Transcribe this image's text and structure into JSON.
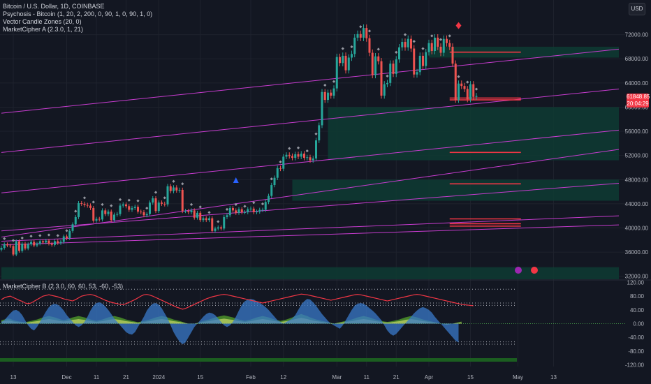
{
  "legend": {
    "main": "Bitcoin / U.S. Dollar, 1D, COINBASE",
    "ind1": "Psychosis - Bitcoin (1, 20, 2, 200, 0, 90, 1, 0, 90, 1, 0)",
    "ind2": "Vector Candle Zones (20, 0)",
    "ind3": "MarketCipher A (2.3.0, 1, 21)",
    "ind4": "MarketCipher B (2.3.0, 60, 60, 53, -60, -53)"
  },
  "currency_button": "USD",
  "price_tag": {
    "price": "61848.85",
    "countdown": "20:04:29"
  },
  "colors": {
    "bg": "#131722",
    "grid": "#1e222d",
    "up": "#26a69a",
    "down": "#ef5350",
    "trend": "#c73ccf",
    "zone": "#0e3b33",
    "level": "#f23645",
    "wave_blue": "#3a79c9",
    "wave_green": "#4f9a2b",
    "wave_yellow": "#c9d86a"
  },
  "chart_data": [
    {
      "type": "candlestick",
      "y_ticks": [
        "72000.00",
        "68000.00",
        "64000.00",
        "60000.00",
        "56000.00",
        "52000.00",
        "48000.00",
        "44000.00",
        "40000.00",
        "36000.00",
        "32000.00"
      ],
      "ylim": [
        31500,
        74500
      ],
      "x_ticks": [
        "13",
        "Dec",
        "11",
        "21",
        "2024",
        "15",
        "Feb",
        "12",
        "Mar",
        "11",
        "21",
        "Apr",
        "15",
        "May",
        "13"
      ],
      "x_tick_dates": [
        "2023-11-13",
        "2023-12-01",
        "2023-12-11",
        "2023-12-21",
        "2024-01-01",
        "2024-01-15",
        "2024-02-01",
        "2024-02-12",
        "2024-03-01",
        "2024-03-11",
        "2024-03-21",
        "2024-04-01",
        "2024-04-15",
        "2024-05-01",
        "2024-05-13"
      ],
      "series": [
        {
          "role": "price",
          "start_date": "2023-11-09",
          "close": [
            36700,
            37300,
            37100,
            37000,
            35600,
            37800,
            36200,
            37400,
            36600,
            37300,
            37700,
            37100,
            37400,
            37800,
            37600,
            37900,
            37400,
            37200,
            37800,
            37500,
            37700,
            38600,
            38300,
            39500,
            40600,
            41800,
            44100,
            44000,
            43800,
            43700,
            43300,
            41200,
            41500,
            41400,
            42900,
            42300,
            42700,
            41300,
            42200,
            42300,
            43700,
            43900,
            43600,
            43000,
            43300,
            43500,
            42700,
            42600,
            42100,
            42300,
            44200,
            44900,
            42800,
            44200,
            44000,
            43900,
            46900,
            46100,
            46700,
            46200,
            46300,
            42800,
            42800,
            42600,
            42900,
            41700,
            42500,
            41300,
            41600,
            41300,
            41600,
            39500,
            39900,
            40100,
            39900,
            41800,
            42100,
            43300,
            42900,
            42500,
            43100,
            42600,
            42600,
            43100,
            43200,
            42600,
            42700,
            43000,
            43000,
            44300,
            45300,
            47100,
            48300,
            49900,
            49800,
            51800,
            52100,
            51900,
            51600,
            52200,
            51800,
            52300,
            51600,
            51700,
            51200,
            51500,
            54500,
            57000,
            62500,
            61200,
            62400,
            61900,
            63100,
            68300,
            67300,
            68500,
            66100,
            68200,
            68800,
            71500,
            72100,
            71500,
            73100,
            71400,
            69000,
            65300,
            68400,
            67600,
            61900,
            63800,
            64000,
            67200,
            65500,
            67900,
            69900,
            70800,
            69900,
            71300,
            69700,
            65400,
            65800,
            68500,
            66800,
            69100,
            70600,
            69300,
            71500,
            70000,
            69000,
            71300,
            70600,
            70000,
            67200,
            61200,
            63900,
            63500,
            63000,
            61300,
            63800,
            61700,
            61848
          ]
        }
      ],
      "trendlines": [
        {
          "start_date": "2023-11-09",
          "start_value": 59000,
          "end_date": "2024-06-04",
          "end_value": 69600
        },
        {
          "start_date": "2023-11-09",
          "start_value": 52500,
          "end_date": "2024-06-04",
          "end_value": 63000
        },
        {
          "start_date": "2023-11-09",
          "start_value": 45800,
          "end_date": "2024-06-04",
          "end_value": 56200
        },
        {
          "start_date": "2023-11-09",
          "start_value": 38500,
          "end_date": "2024-06-04",
          "end_value": 53000
        },
        {
          "start_date": "2023-11-09",
          "start_value": 39500,
          "end_date": "2024-06-04",
          "end_value": 47400
        },
        {
          "start_date": "2023-11-09",
          "start_value": 37800,
          "end_date": "2024-06-04",
          "end_value": 42000
        },
        {
          "start_date": "2023-11-09",
          "start_value": 37200,
          "end_date": "2024-06-04",
          "end_value": 40500
        }
      ],
      "zones": [
        {
          "start_date": "2024-02-27",
          "end_date": "2024-06-04",
          "low": 51200,
          "high": 60000
        },
        {
          "start_date": "2024-02-15",
          "end_date": "2024-06-04",
          "low": 44500,
          "high": 48000
        },
        {
          "start_date": "2023-11-09",
          "end_date": "2024-06-04",
          "low": 31500,
          "high": 33500
        },
        {
          "start_date": "2024-04-01",
          "end_date": "2024-06-04",
          "low": 68200,
          "high": 70000
        }
      ],
      "levels": [
        {
          "start_date": "2024-04-08",
          "end_date": "2024-05-02",
          "value": 69100
        },
        {
          "start_date": "2024-04-08",
          "end_date": "2024-05-02",
          "value": 61500
        },
        {
          "start_date": "2024-04-08",
          "end_date": "2024-05-02",
          "value": 61200
        },
        {
          "start_date": "2024-04-08",
          "end_date": "2024-05-02",
          "value": 52500
        },
        {
          "start_date": "2024-04-08",
          "end_date": "2024-05-02",
          "value": 47300
        },
        {
          "start_date": "2024-04-08",
          "end_date": "2024-05-02",
          "value": 41500
        },
        {
          "start_date": "2024-04-08",
          "end_date": "2024-05-02",
          "value": 40700
        },
        {
          "start_date": "2024-04-08",
          "end_date": "2024-05-02",
          "value": 40300
        }
      ],
      "markers": [
        {
          "date": "2024-01-27",
          "value": 47800,
          "shape": "triangle"
        },
        {
          "date": "2024-04-11",
          "value": 73500,
          "shape": "diamond"
        }
      ]
    },
    {
      "type": "area",
      "y_ticks": [
        "120.00",
        "80.00",
        "40.00",
        "0.00",
        "-40.00",
        "-80.00",
        "-120.00"
      ],
      "ylim": [
        -125,
        125
      ],
      "threshold_lines": [
        100,
        60,
        53,
        -53,
        -60
      ],
      "x_start_date": "2023-11-09",
      "x_step_days": 1,
      "wave": [
        5,
        10,
        20,
        30,
        38,
        40,
        35,
        25,
        10,
        -5,
        -15,
        -20,
        -10,
        5,
        20,
        35,
        48,
        55,
        58,
        55,
        48,
        38,
        25,
        15,
        5,
        -5,
        -10,
        -5,
        5,
        20,
        38,
        52,
        60,
        62,
        58,
        50,
        40,
        28,
        15,
        5,
        -5,
        -15,
        -25,
        -30,
        -32,
        -25,
        -10,
        5,
        20,
        38,
        50,
        58,
        60,
        55,
        45,
        30,
        15,
        -5,
        -25,
        -40,
        -52,
        -60,
        -55,
        -40,
        -25,
        -10,
        0,
        10,
        20,
        28,
        32,
        30,
        25,
        15,
        5,
        -5,
        -10,
        -5,
        5,
        20,
        38,
        55,
        65,
        70,
        72,
        70,
        65,
        60,
        55,
        48,
        40,
        30,
        20,
        10,
        5,
        0,
        5,
        10,
        15,
        25,
        40,
        55,
        65,
        72,
        70,
        62,
        52,
        40,
        28,
        18,
        8,
        0,
        -5,
        -10,
        -15,
        -5,
        10,
        25,
        40,
        52,
        58,
        60,
        58,
        52,
        45,
        38,
        30,
        20,
        10,
        -5,
        -20,
        -30,
        -35,
        -30,
        -20,
        -10,
        0,
        10,
        20,
        30,
        38,
        45,
        48,
        45,
        40,
        32,
        20,
        10,
        0,
        -10,
        -20,
        -30,
        -40,
        -50,
        -55
      ],
      "money_flow": [
        10,
        12,
        15,
        14,
        10,
        8,
        6,
        5,
        4,
        6,
        8,
        10,
        12,
        15,
        18,
        20,
        22,
        20,
        18,
        15,
        12,
        10,
        12,
        15,
        18,
        20,
        22,
        20,
        18,
        15,
        12,
        10,
        8,
        10,
        12,
        15,
        18,
        20,
        22,
        20,
        18,
        15,
        12,
        10,
        8,
        6,
        4,
        6,
        8,
        10,
        12,
        15,
        18,
        20,
        22,
        20,
        18,
        15,
        12,
        10,
        8,
        5,
        2,
        0,
        -2,
        0,
        2,
        5,
        8,
        10,
        12,
        15,
        18,
        20,
        22,
        24,
        22,
        20,
        18,
        15,
        12,
        10,
        8,
        10,
        12,
        15,
        18,
        20,
        22,
        20,
        18,
        15,
        12,
        10,
        8,
        10,
        12,
        15,
        18,
        22,
        25,
        28,
        25,
        22,
        18,
        15,
        12,
        10,
        8,
        6,
        4,
        2,
        0,
        2,
        4,
        6,
        8,
        10,
        12,
        15,
        18,
        20,
        22,
        20,
        18,
        15,
        12,
        10,
        8,
        6,
        5,
        6,
        8,
        10,
        12,
        15,
        18,
        20,
        22,
        20,
        18,
        15,
        12,
        10,
        8,
        6,
        4,
        2,
        0,
        -2,
        -4,
        -2,
        0,
        2,
        4,
        6
      ],
      "rsi_line": [
        70,
        75,
        78,
        80,
        76,
        72,
        68,
        65,
        60,
        58,
        60,
        65,
        70,
        75,
        80,
        82,
        84,
        82,
        80,
        78,
        75,
        72,
        70,
        68,
        66,
        70,
        75,
        80,
        82,
        84,
        85,
        83,
        80,
        76,
        72,
        68,
        65,
        62,
        60,
        58,
        56,
        55,
        58,
        62,
        66,
        70,
        75,
        80,
        84,
        85,
        83,
        80,
        76,
        72,
        68,
        64,
        60,
        56,
        52,
        48,
        45,
        42,
        44,
        48,
        52,
        56,
        60,
        64,
        68,
        72,
        75,
        78,
        80,
        82,
        84,
        85,
        84,
        82,
        80,
        78,
        76,
        74,
        72,
        70,
        68,
        66,
        64,
        62,
        60,
        62,
        64,
        66,
        68,
        70,
        72,
        74,
        76,
        78,
        80,
        82,
        84,
        86,
        85,
        84,
        82,
        80,
        78,
        76,
        74,
        72,
        70,
        68,
        70,
        72,
        74,
        76,
        78,
        80,
        82,
        84,
        85,
        84,
        82,
        80,
        78,
        76,
        74,
        72,
        70,
        68,
        66,
        68,
        70,
        72,
        74,
        76,
        78,
        80,
        82,
        84,
        85,
        84,
        82,
        80,
        78,
        76,
        74,
        72,
        70,
        68,
        66,
        64,
        62,
        60,
        58,
        56,
        55,
        54,
        53,
        52
      ]
    }
  ]
}
